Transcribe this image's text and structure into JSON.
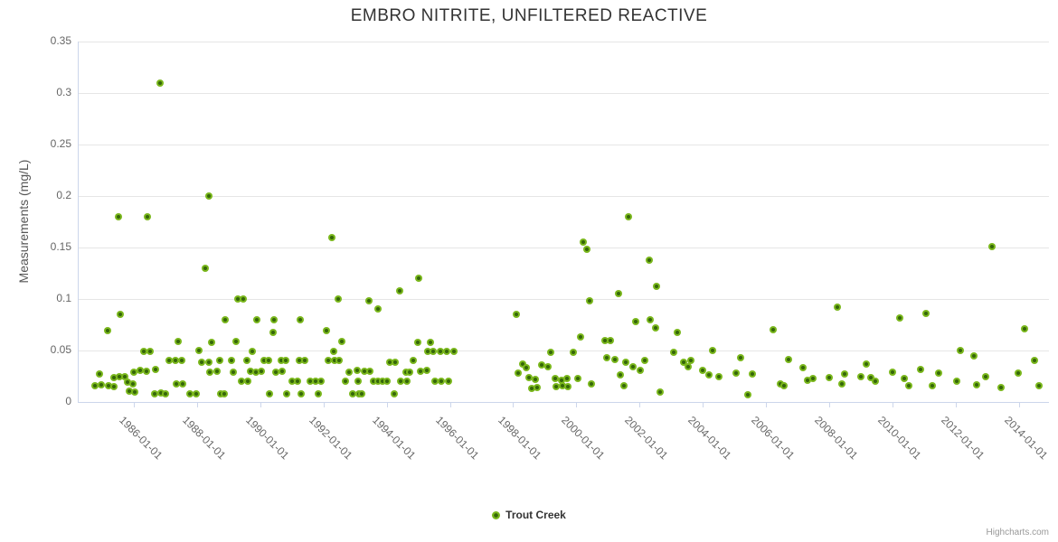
{
  "title": "EMBRO NITRITE, UNFILTERED REACTIVE",
  "legend": {
    "label": "Trout Creek"
  },
  "credits": "Highcharts.com",
  "colors": {
    "series_outer": "#7ab71c",
    "series_inner": "#356709",
    "grid": "#e6e6e6",
    "axis": "#ccd6eb",
    "tick_label": "#666666",
    "title": "#333333",
    "credits": "#999999"
  },
  "chart_data": {
    "type": "scatter",
    "title": "EMBRO NITRITE, UNFILTERED REACTIVE",
    "xlabel": "",
    "ylabel": "Measurements (mg/L)",
    "ylim": [
      0,
      0.35
    ],
    "xlim_years": [
      1983.8,
      2015.0
    ],
    "grid": true,
    "legend_position": "bottom-center",
    "y_tick_values": [
      0,
      0.05,
      0.1,
      0.15,
      0.2,
      0.25,
      0.3,
      0.35
    ],
    "y_tick_labels": [
      "0",
      "0.05",
      "0.1",
      "0.15",
      "0.2",
      "0.25",
      "0.3",
      "0.35"
    ],
    "x_tick_labels": [
      "1986-01-01",
      "1988-01-01",
      "1990-01-01",
      "1992-01-01",
      "1994-01-01",
      "1996-01-01",
      "1998-01-01",
      "2000-01-01",
      "2002-01-01",
      "2004-01-01",
      "2006-01-01",
      "2008-01-01",
      "2010-01-01",
      "2012-01-01",
      "2014-01-01"
    ],
    "series": [
      {
        "name": "Trout Creek",
        "points": [
          [
            1984.77,
            0.016
          ],
          [
            1984.91,
            0.027
          ],
          [
            1984.97,
            0.017
          ],
          [
            1985.17,
            0.069
          ],
          [
            1985.2,
            0.016
          ],
          [
            1985.36,
            0.024
          ],
          [
            1985.37,
            0.015
          ],
          [
            1985.51,
            0.18
          ],
          [
            1985.54,
            0.025
          ],
          [
            1985.57,
            0.085
          ],
          [
            1985.71,
            0.025
          ],
          [
            1985.8,
            0.019
          ],
          [
            1985.86,
            0.011
          ],
          [
            1985.97,
            0.018
          ],
          [
            1986.0,
            0.029
          ],
          [
            1986.03,
            0.01
          ],
          [
            1986.2,
            0.031
          ],
          [
            1986.31,
            0.049
          ],
          [
            1986.4,
            0.03
          ],
          [
            1986.43,
            0.18
          ],
          [
            1986.51,
            0.049
          ],
          [
            1986.66,
            0.008
          ],
          [
            1986.69,
            0.032
          ],
          [
            1986.83,
            0.31
          ],
          [
            1986.86,
            0.009
          ],
          [
            1987.0,
            0.008
          ],
          [
            1987.11,
            0.04
          ],
          [
            1987.31,
            0.04
          ],
          [
            1987.33,
            0.018
          ],
          [
            1987.4,
            0.059
          ],
          [
            1987.51,
            0.04
          ],
          [
            1987.53,
            0.018
          ],
          [
            1987.77,
            0.008
          ],
          [
            1987.97,
            0.008
          ],
          [
            1988.06,
            0.05
          ],
          [
            1988.15,
            0.039
          ],
          [
            1988.26,
            0.13
          ],
          [
            1988.37,
            0.2
          ],
          [
            1988.38,
            0.039
          ],
          [
            1988.4,
            0.029
          ],
          [
            1988.46,
            0.058
          ],
          [
            1988.63,
            0.03
          ],
          [
            1988.72,
            0.04
          ],
          [
            1988.74,
            0.008
          ],
          [
            1988.86,
            0.008
          ],
          [
            1988.89,
            0.08
          ],
          [
            1989.09,
            0.04
          ],
          [
            1989.14,
            0.029
          ],
          [
            1989.23,
            0.059
          ],
          [
            1989.29,
            0.1
          ],
          [
            1989.4,
            0.02
          ],
          [
            1989.46,
            0.1
          ],
          [
            1989.57,
            0.04
          ],
          [
            1989.59,
            0.02
          ],
          [
            1989.69,
            0.03
          ],
          [
            1989.74,
            0.049
          ],
          [
            1989.86,
            0.029
          ],
          [
            1989.89,
            0.08
          ],
          [
            1990.03,
            0.03
          ],
          [
            1990.12,
            0.04
          ],
          [
            1990.26,
            0.04
          ],
          [
            1990.28,
            0.008
          ],
          [
            1990.4,
            0.068
          ],
          [
            1990.43,
            0.08
          ],
          [
            1990.49,
            0.029
          ],
          [
            1990.66,
            0.04
          ],
          [
            1990.69,
            0.03
          ],
          [
            1990.8,
            0.04
          ],
          [
            1990.83,
            0.008
          ],
          [
            1991.0,
            0.02
          ],
          [
            1991.17,
            0.02
          ],
          [
            1991.23,
            0.04
          ],
          [
            1991.26,
            0.08
          ],
          [
            1991.29,
            0.008
          ],
          [
            1991.4,
            0.04
          ],
          [
            1991.57,
            0.02
          ],
          [
            1991.74,
            0.02
          ],
          [
            1991.83,
            0.008
          ],
          [
            1991.91,
            0.02
          ],
          [
            1992.09,
            0.069
          ],
          [
            1992.15,
            0.04
          ],
          [
            1992.27,
            0.16
          ],
          [
            1992.32,
            0.049
          ],
          [
            1992.35,
            0.04
          ],
          [
            1992.47,
            0.1
          ],
          [
            1992.5,
            0.04
          ],
          [
            1992.58,
            0.059
          ],
          [
            1992.69,
            0.02
          ],
          [
            1992.8,
            0.029
          ],
          [
            1992.92,
            0.008
          ],
          [
            1993.06,
            0.031
          ],
          [
            1993.09,
            0.02
          ],
          [
            1993.12,
            0.008
          ],
          [
            1993.21,
            0.008
          ],
          [
            1993.3,
            0.03
          ],
          [
            1993.44,
            0.098
          ],
          [
            1993.47,
            0.03
          ],
          [
            1993.58,
            0.02
          ],
          [
            1993.72,
            0.02
          ],
          [
            1993.73,
            0.09
          ],
          [
            1993.87,
            0.02
          ],
          [
            1994.0,
            0.02
          ],
          [
            1994.1,
            0.039
          ],
          [
            1994.24,
            0.008
          ],
          [
            1994.27,
            0.039
          ],
          [
            1994.41,
            0.108
          ],
          [
            1994.44,
            0.02
          ],
          [
            1994.61,
            0.029
          ],
          [
            1994.63,
            0.02
          ],
          [
            1994.73,
            0.029
          ],
          [
            1994.84,
            0.04
          ],
          [
            1994.98,
            0.058
          ],
          [
            1995.02,
            0.12
          ],
          [
            1995.07,
            0.03
          ],
          [
            1995.27,
            0.031
          ],
          [
            1995.3,
            0.049
          ],
          [
            1995.38,
            0.058
          ],
          [
            1995.47,
            0.049
          ],
          [
            1995.53,
            0.02
          ],
          [
            1995.7,
            0.049
          ],
          [
            1995.72,
            0.02
          ],
          [
            1995.9,
            0.049
          ],
          [
            1995.96,
            0.02
          ],
          [
            1996.13,
            0.049
          ],
          [
            1998.1,
            0.085
          ],
          [
            1998.17,
            0.028
          ],
          [
            1998.3,
            0.037
          ],
          [
            1998.42,
            0.033
          ],
          [
            1998.51,
            0.024
          ],
          [
            1998.6,
            0.013
          ],
          [
            1998.71,
            0.022
          ],
          [
            1998.77,
            0.014
          ],
          [
            1998.91,
            0.036
          ],
          [
            1999.11,
            0.034
          ],
          [
            1999.2,
            0.048
          ],
          [
            1999.33,
            0.023
          ],
          [
            1999.36,
            0.015
          ],
          [
            1999.53,
            0.021
          ],
          [
            1999.56,
            0.016
          ],
          [
            1999.7,
            0.023
          ],
          [
            1999.73,
            0.015
          ],
          [
            1999.89,
            0.048
          ],
          [
            2000.06,
            0.023
          ],
          [
            2000.13,
            0.063
          ],
          [
            2000.22,
            0.155
          ],
          [
            2000.33,
            0.148
          ],
          [
            2000.42,
            0.098
          ],
          [
            2000.48,
            0.018
          ],
          [
            2000.9,
            0.06
          ],
          [
            2000.97,
            0.043
          ],
          [
            2001.07,
            0.06
          ],
          [
            2001.23,
            0.041
          ],
          [
            2001.34,
            0.105
          ],
          [
            2001.4,
            0.026
          ],
          [
            2001.51,
            0.016
          ],
          [
            2001.57,
            0.039
          ],
          [
            2001.65,
            0.18
          ],
          [
            2001.8,
            0.034
          ],
          [
            2001.89,
            0.078
          ],
          [
            2002.03,
            0.031
          ],
          [
            2002.17,
            0.04
          ],
          [
            2002.31,
            0.138
          ],
          [
            2002.33,
            0.08
          ],
          [
            2002.51,
            0.072
          ],
          [
            2002.54,
            0.112
          ],
          [
            2002.66,
            0.01
          ],
          [
            2003.08,
            0.048
          ],
          [
            2003.2,
            0.068
          ],
          [
            2003.4,
            0.039
          ],
          [
            2003.54,
            0.034
          ],
          [
            2003.63,
            0.04
          ],
          [
            2004.0,
            0.031
          ],
          [
            2004.2,
            0.026
          ],
          [
            2004.31,
            0.05
          ],
          [
            2004.51,
            0.025
          ],
          [
            2005.06,
            0.028
          ],
          [
            2005.2,
            0.043
          ],
          [
            2005.43,
            0.007
          ],
          [
            2005.57,
            0.027
          ],
          [
            2006.24,
            0.07
          ],
          [
            2006.46,
            0.018
          ],
          [
            2006.57,
            0.016
          ],
          [
            2006.7,
            0.041
          ],
          [
            2007.17,
            0.033
          ],
          [
            2007.31,
            0.021
          ],
          [
            2007.49,
            0.023
          ],
          [
            2008.0,
            0.024
          ],
          [
            2008.27,
            0.092
          ],
          [
            2008.4,
            0.018
          ],
          [
            2008.49,
            0.027
          ],
          [
            2009.0,
            0.025
          ],
          [
            2009.17,
            0.037
          ],
          [
            2009.31,
            0.024
          ],
          [
            2009.46,
            0.02
          ],
          [
            2010.0,
            0.029
          ],
          [
            2010.23,
            0.082
          ],
          [
            2010.37,
            0.023
          ],
          [
            2010.51,
            0.016
          ],
          [
            2010.89,
            0.032
          ],
          [
            2011.06,
            0.086
          ],
          [
            2011.26,
            0.016
          ],
          [
            2011.46,
            0.028
          ],
          [
            2012.03,
            0.02
          ],
          [
            2012.15,
            0.05
          ],
          [
            2012.58,
            0.045
          ],
          [
            2012.66,
            0.017
          ],
          [
            2012.94,
            0.025
          ],
          [
            2013.15,
            0.151
          ],
          [
            2013.43,
            0.014
          ],
          [
            2013.97,
            0.028
          ],
          [
            2014.18,
            0.071
          ],
          [
            2014.49,
            0.04
          ],
          [
            2014.63,
            0.016
          ]
        ]
      }
    ]
  }
}
